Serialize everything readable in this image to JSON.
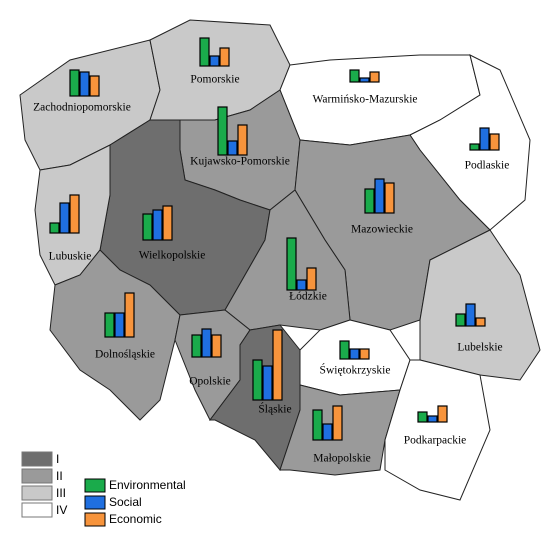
{
  "regions": [
    {
      "name": "Zachodniopomorskie",
      "class": 2,
      "values": [
        26,
        24,
        20
      ]
    },
    {
      "name": "Pomorskie",
      "class": 2,
      "values": [
        28,
        10,
        18
      ]
    },
    {
      "name": "Warmińsko-Mazurskie",
      "class": 3,
      "values": [
        12,
        4,
        10
      ]
    },
    {
      "name": "Podlaskie",
      "class": 3,
      "values": [
        6,
        22,
        16
      ]
    },
    {
      "name": "Kujawsko-Pomorskie",
      "class": 1,
      "values": [
        48,
        14,
        30
      ]
    },
    {
      "name": "Wielkopolskie",
      "class": 0,
      "values": [
        26,
        30,
        34
      ]
    },
    {
      "name": "Lubuskie",
      "class": 2,
      "values": [
        10,
        30,
        38
      ]
    },
    {
      "name": "Mazowieckie",
      "class": 1,
      "values": [
        24,
        34,
        30
      ]
    },
    {
      "name": "Łódzkie",
      "class": 1,
      "values": [
        52,
        10,
        22
      ]
    },
    {
      "name": "Lubelskie",
      "class": 2,
      "values": [
        12,
        22,
        8
      ]
    },
    {
      "name": "Dolnośląskie",
      "class": 1,
      "values": [
        24,
        24,
        44
      ]
    },
    {
      "name": "Opolskie",
      "class": 1,
      "values": [
        22,
        28,
        22
      ]
    },
    {
      "name": "Śląskie",
      "class": 0,
      "values": [
        40,
        34,
        70
      ]
    },
    {
      "name": "Świętokrzyskie",
      "class": 3,
      "values": [
        18,
        10,
        10
      ]
    },
    {
      "name": "Małopolskie",
      "class": 1,
      "values": [
        30,
        16,
        34
      ]
    },
    {
      "name": "Podkarpackie",
      "class": 3,
      "values": [
        10,
        6,
        16
      ]
    }
  ],
  "legend": {
    "classes": [
      {
        "label": "I",
        "color": "#6e6e6e"
      },
      {
        "label": "II",
        "color": "#9a9a9a"
      },
      {
        "label": "III",
        "color": "#c9c9c9"
      },
      {
        "label": "IV",
        "color": "#ffffff"
      }
    ],
    "series": [
      {
        "name": "Environmental",
        "color": "#1aab4b"
      },
      {
        "name": "Social",
        "color": "#1f6fe0"
      },
      {
        "name": "Economic",
        "color": "#f7943c"
      }
    ]
  }
}
